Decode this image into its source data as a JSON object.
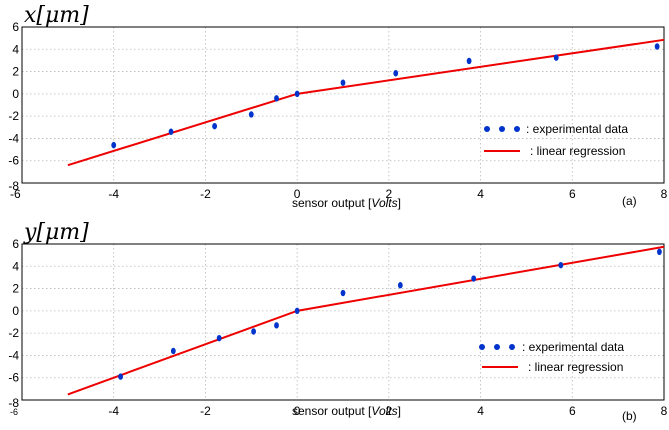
{
  "chart_data": [
    {
      "type": "scatter",
      "panel_label": "(a)",
      "ylabel_math": "x[μm]",
      "xlabel_prefix": "sensor output [",
      "xlabel_italic": "Volts",
      "xlabel_suffix": "]",
      "xlim": [
        -6,
        8
      ],
      "ylim": [
        -8,
        6
      ],
      "xticks": [
        -6,
        -4,
        -2,
        0,
        2,
        4,
        6,
        8
      ],
      "yticks": [
        -8,
        -6,
        -4,
        -2,
        0,
        2,
        4,
        6
      ],
      "grid": true,
      "legend_placement": "lower-right",
      "series": [
        {
          "name": ": experimental data",
          "kind": "scatter",
          "color": "#0033cc",
          "x": [
            -4.0,
            -2.75,
            -1.8,
            -1.0,
            -0.45,
            0.0,
            1.0,
            2.15,
            3.75,
            5.65,
            7.85
          ],
          "y": [
            -4.6,
            -3.4,
            -2.9,
            -1.85,
            -0.4,
            0.0,
            1.0,
            1.85,
            2.95,
            3.25,
            4.25
          ]
        },
        {
          "name": ": linear regression",
          "kind": "line",
          "color": "#ee0000",
          "x": [
            -5.0,
            0.0,
            8.0
          ],
          "y": [
            -6.4,
            0.0,
            4.85
          ]
        }
      ]
    },
    {
      "type": "scatter",
      "panel_label": "(b)",
      "ylabel_math": "y[μm]",
      "xlabel_prefix": "sensor output [",
      "xlabel_italic": "Volts",
      "xlabel_suffix": "]",
      "xlim": [
        -6,
        8
      ],
      "ylim": [
        -8,
        6
      ],
      "xticks": [
        -6,
        -4,
        -2,
        0,
        2,
        4,
        6,
        8
      ],
      "yticks": [
        -8,
        -6,
        -4,
        -2,
        0,
        2,
        4,
        6
      ],
      "grid": true,
      "legend_placement": "lower-right",
      "series": [
        {
          "name": ": experimental data",
          "kind": "scatter",
          "color": "#0033cc",
          "x": [
            -3.85,
            -2.7,
            -1.7,
            -0.95,
            -0.45,
            0.0,
            1.0,
            2.25,
            3.85,
            5.75,
            7.9
          ],
          "y": [
            -5.9,
            -3.6,
            -2.45,
            -1.85,
            -1.3,
            0.0,
            1.6,
            2.3,
            2.9,
            4.1,
            5.3
          ]
        },
        {
          "name": ": linear regression",
          "kind": "line",
          "color": "#ee0000",
          "x": [
            -5.0,
            0.0,
            8.0
          ],
          "y": [
            -7.5,
            0.0,
            5.75
          ]
        }
      ]
    }
  ]
}
